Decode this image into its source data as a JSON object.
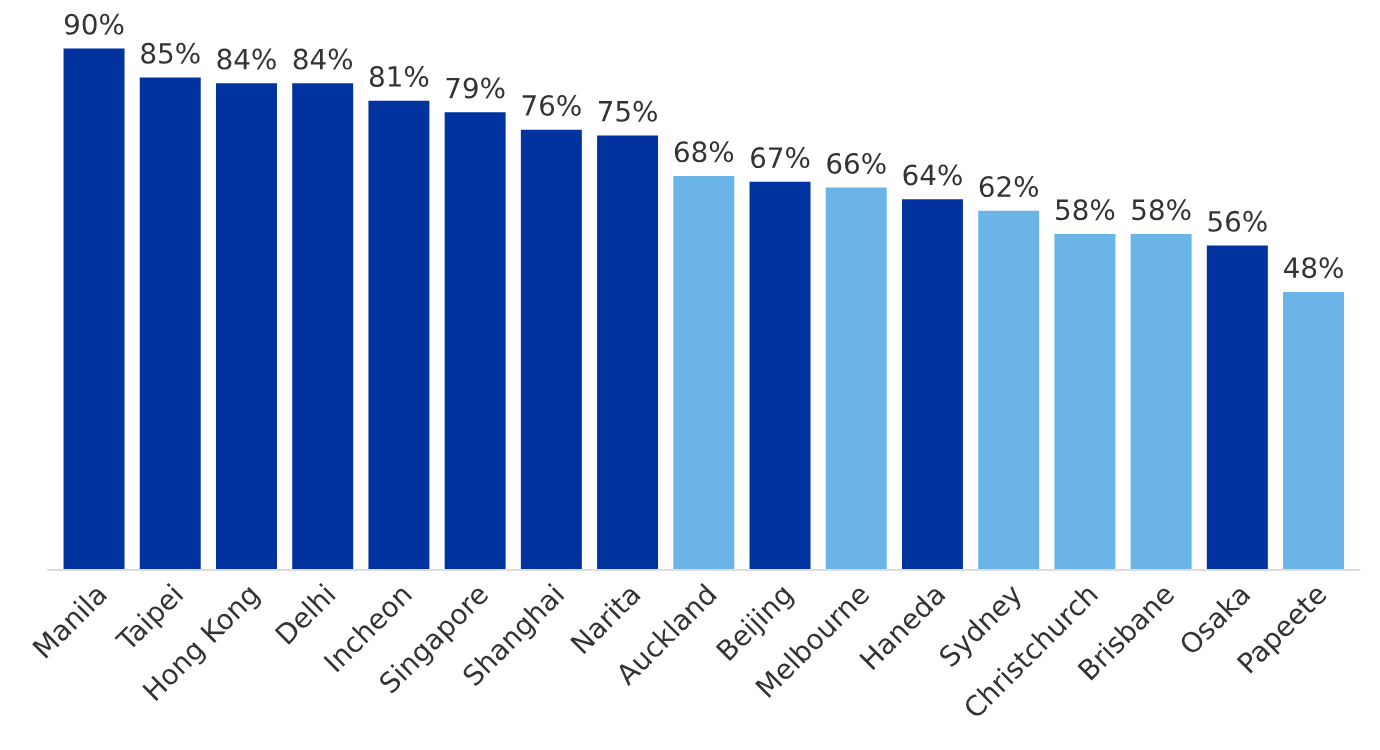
{
  "chart_data": {
    "type": "bar",
    "categories": [
      "Manila",
      "Taipei",
      "Hong Kong",
      "Delhi",
      "Incheon",
      "Singapore",
      "Shanghai",
      "Narita",
      "Auckland",
      "Beijing",
      "Melbourne",
      "Haneda",
      "Sydney",
      "Christchurch",
      "Brisbane",
      "Osaka",
      "Papeete"
    ],
    "values": [
      90,
      85,
      84,
      84,
      81,
      79,
      76,
      75,
      68,
      67,
      66,
      64,
      62,
      58,
      58,
      56,
      48
    ],
    "value_labels": [
      "90%",
      "85%",
      "84%",
      "84%",
      "81%",
      "79%",
      "76%",
      "75%",
      "68%",
      "67%",
      "66%",
      "64%",
      "62%",
      "58%",
      "58%",
      "56%",
      "48%"
    ],
    "colors": [
      "#0033a0",
      "#0033a0",
      "#0033a0",
      "#0033a0",
      "#0033a0",
      "#0033a0",
      "#0033a0",
      "#0033a0",
      "#6ab4e8",
      "#0033a0",
      "#6ab4e8",
      "#0033a0",
      "#6ab4e8",
      "#6ab4e8",
      "#6ab4e8",
      "#0033a0",
      "#6ab4e8"
    ],
    "grid": false,
    "legend": false
  }
}
